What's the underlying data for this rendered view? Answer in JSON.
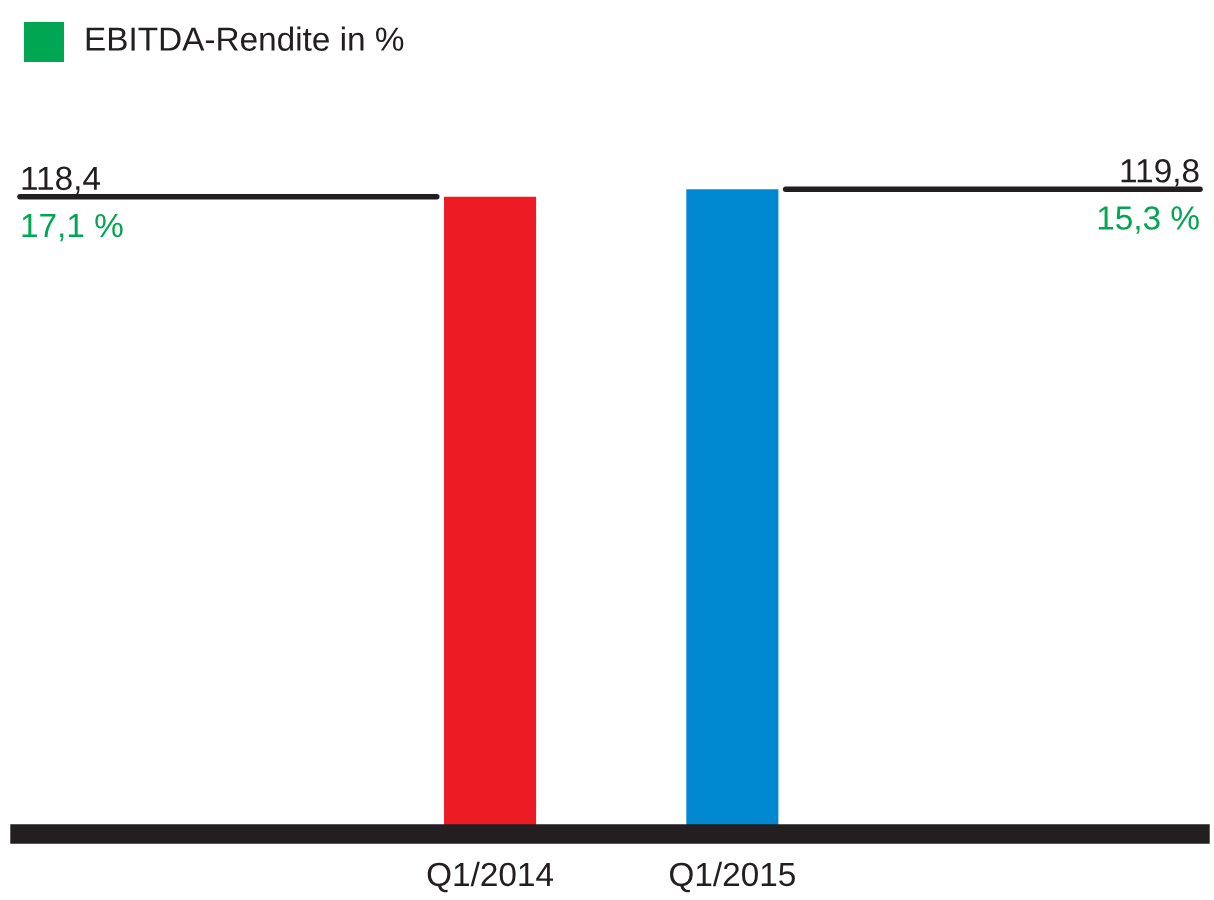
{
  "chart_data": {
    "type": "bar",
    "categories": [
      "Q1/2014",
      "Q1/2015"
    ],
    "series": [
      {
        "colors": [
          "#ed1c24",
          "#0088d1"
        ],
        "values": [
          118.4,
          119.8
        ],
        "value_labels": [
          "118,4",
          "119,8"
        ]
      }
    ],
    "legend_title": "EBITDA-Rendite in %",
    "annotations": [
      "17,1 %",
      "15,3 %"
    ],
    "tick_labels": "x",
    "grid": false
  }
}
